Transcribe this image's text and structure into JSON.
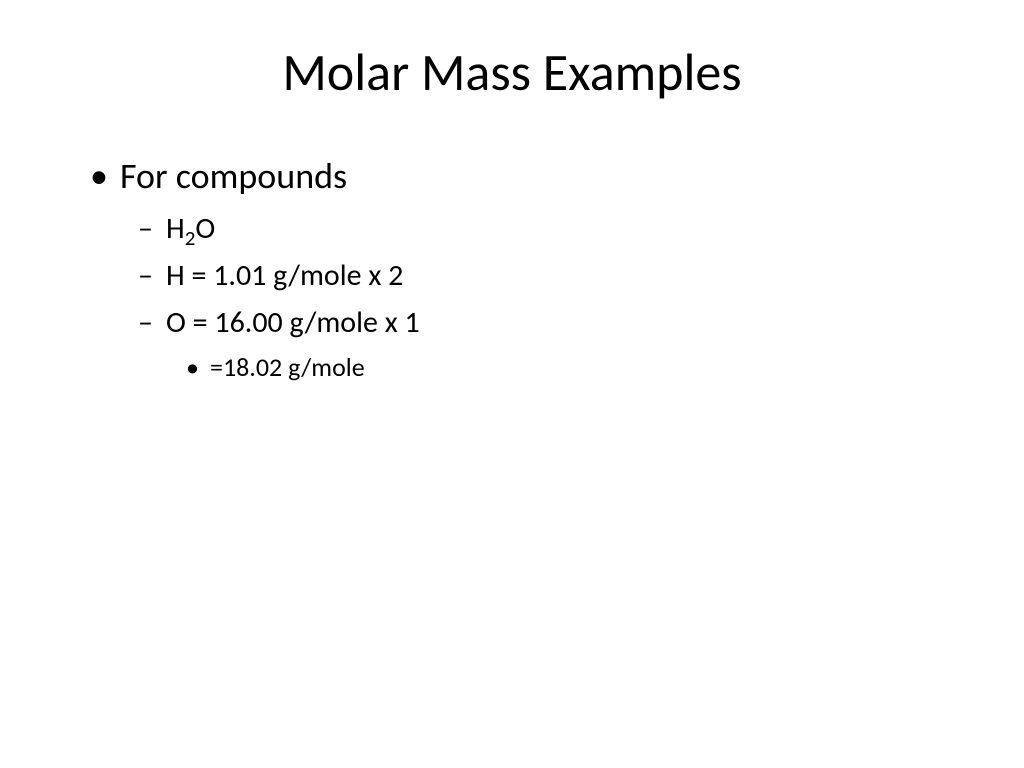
{
  "title": "Molar Mass Examples",
  "content": {
    "bullet1": "For compounds",
    "sub1_prefix": "H",
    "sub1_subscript": "2",
    "sub1_suffix": "O",
    "sub2": "H = 1.01 g/mole x 2",
    "sub3": "O = 16.00 g/mole x 1",
    "subsub1": "=18.02 g/mole"
  },
  "style": {
    "background_color": "#ffffff",
    "text_color": "#000000",
    "title_fontsize": 52,
    "level1_fontsize": 36,
    "level2_fontsize": 30,
    "level3_fontsize": 26,
    "font_family": "Calibri"
  }
}
